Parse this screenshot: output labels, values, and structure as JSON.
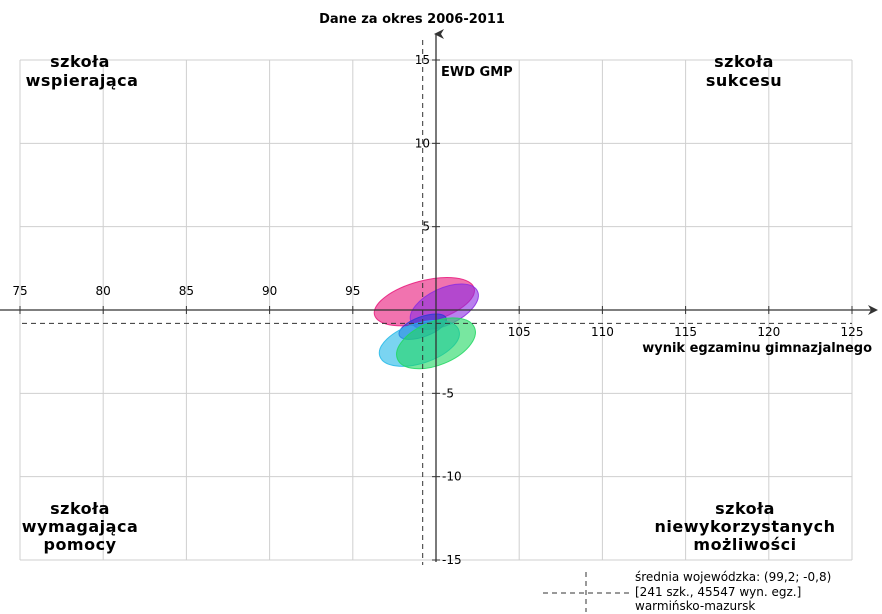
{
  "chart_data": {
    "type": "scatter",
    "title": "Dane za okres 2006-2011",
    "xlabel": "wynik egzaminu gimnazjalnego",
    "ylabel": "EWD GMP",
    "xlim": [
      75,
      125
    ],
    "ylim": [
      -15,
      15
    ],
    "x_ticks": [
      75,
      80,
      85,
      90,
      95,
      105,
      110,
      115,
      120,
      125
    ],
    "y_ticks": [
      15,
      10,
      5,
      -5,
      -10,
      -15
    ],
    "grid": true,
    "corner_labels": {
      "top_left": [
        "szkoła",
        "wspierająca"
      ],
      "top_right": [
        "szkoła",
        "sukcesu"
      ],
      "bottom_left": [
        "szkoła",
        "wymagająca",
        "pomocy"
      ],
      "bottom_right": [
        "szkoła",
        "niewykorzystanych",
        "możliwości"
      ]
    },
    "ellipses": [
      {
        "cx": 99.3,
        "cy": 0.5,
        "rx": 3.1,
        "ry": 1.25,
        "angle": -15,
        "color": "#e8167a"
      },
      {
        "cx": 100.5,
        "cy": 0.2,
        "rx": 2.2,
        "ry": 1.1,
        "angle": -25,
        "color": "#8a2be2"
      },
      {
        "cx": 99.2,
        "cy": -1.0,
        "rx": 1.5,
        "ry": 0.6,
        "angle": -20,
        "color": "#2a3bd6"
      },
      {
        "cx": 99.0,
        "cy": -2.0,
        "rx": 2.5,
        "ry": 1.2,
        "angle": -18,
        "color": "#22b8e8"
      },
      {
        "cx": 100.0,
        "cy": -2.0,
        "rx": 2.5,
        "ry": 1.3,
        "angle": -22,
        "color": "#1ed760"
      }
    ],
    "reference": {
      "x": 99.2,
      "y": -0.8
    },
    "legend": {
      "position": "bottom-right",
      "lines": [
        "średnia wojewódzka: (99,2; -0,8)",
        "[241 szk., 45547 wyn. egz.]",
        "warmińsko-mazursk"
      ]
    }
  }
}
